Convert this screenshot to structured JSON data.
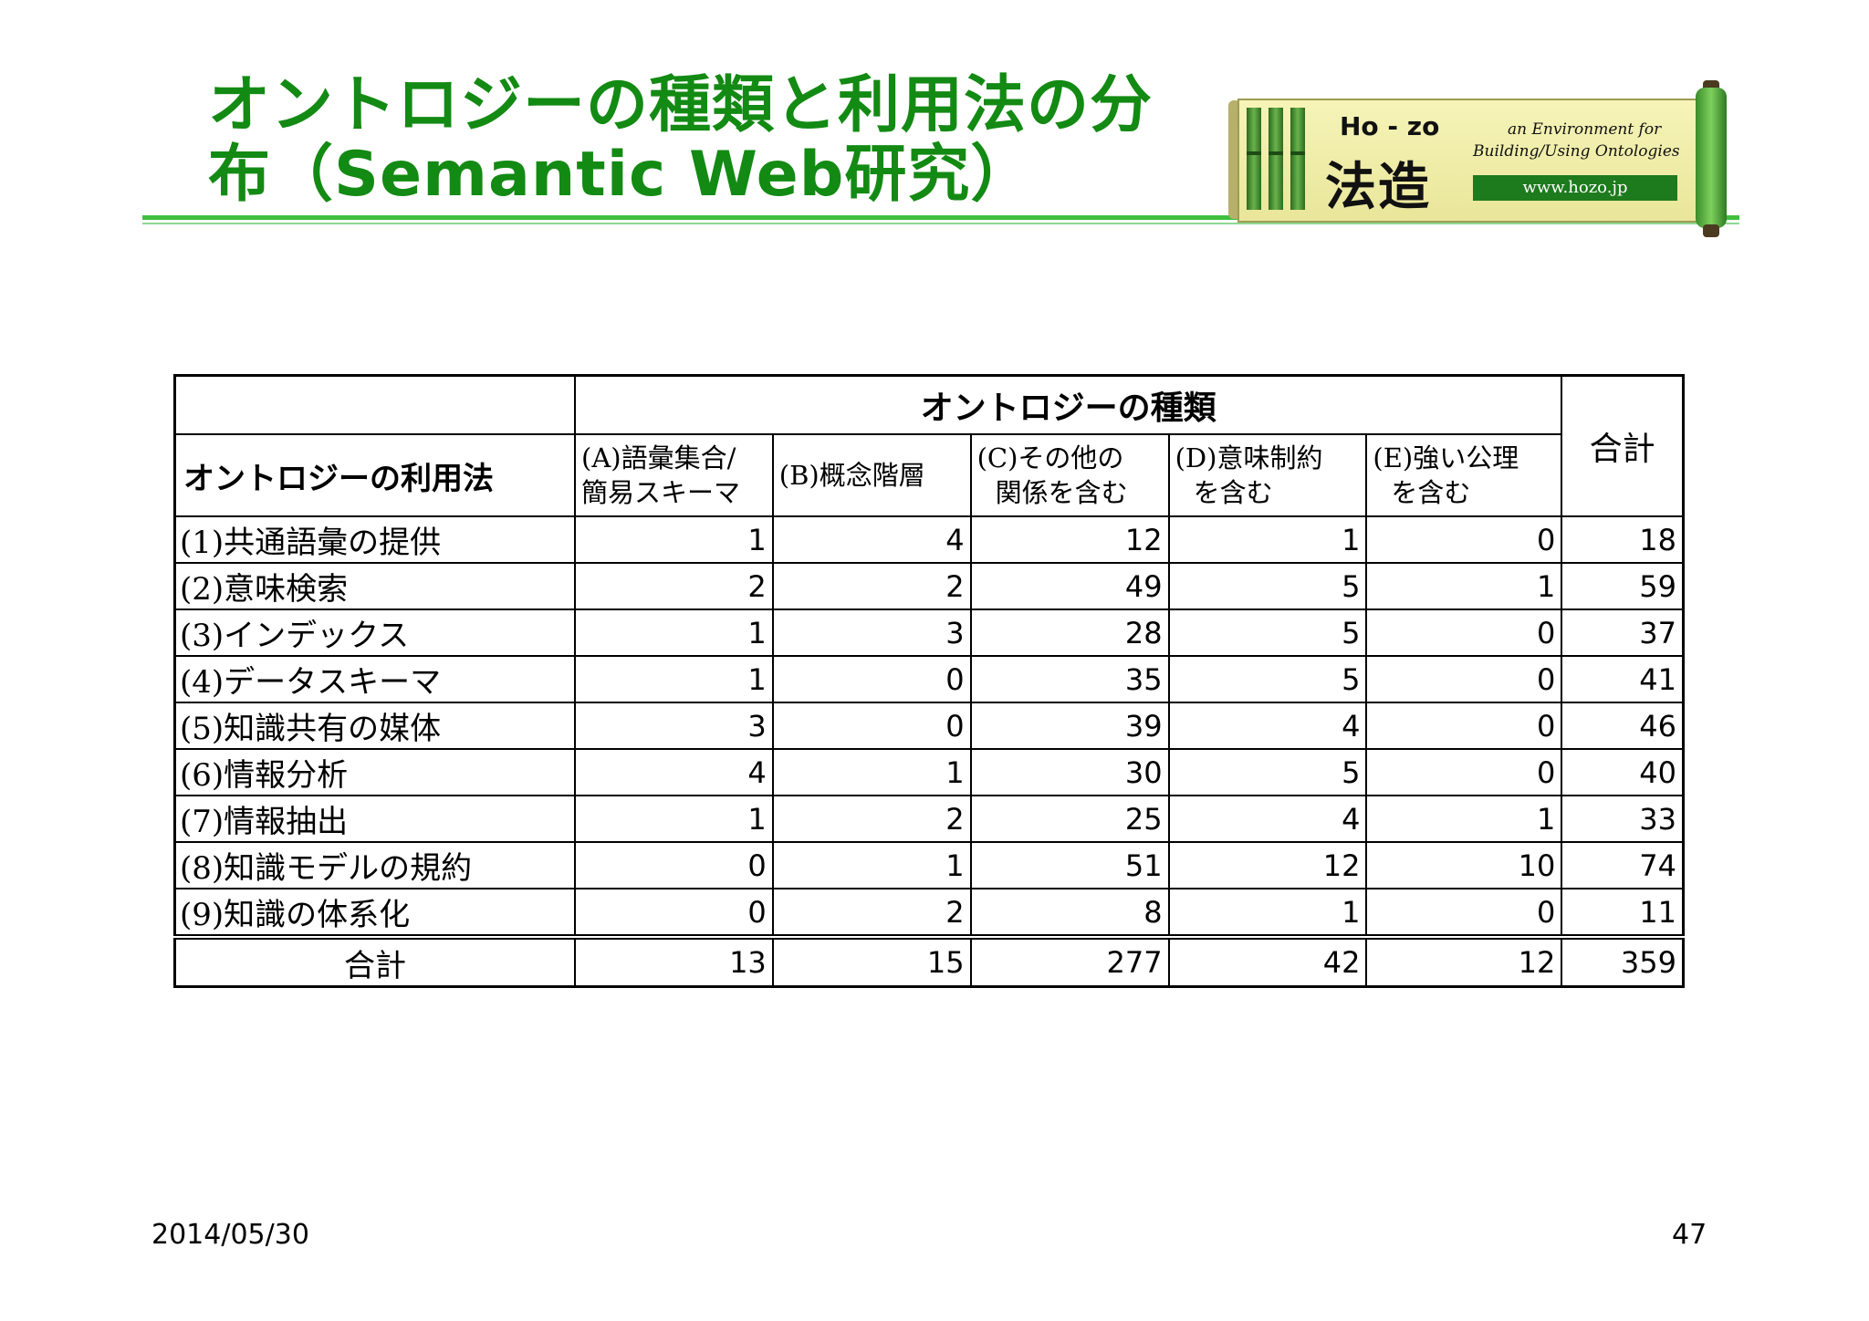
{
  "slide": {
    "title_line1": "オントロジーの種類と利用法の分",
    "title_line2": "布（Semantic Web研究）",
    "date": "2014/05/30",
    "page_number": "47"
  },
  "logo": {
    "hozo": "Ho - zo",
    "kanji": "法造",
    "tagline1": "an Environment for",
    "tagline2": "Building/Using Ontologies",
    "url": "www.hozo.jp"
  },
  "table": {
    "group_header": "オントロジーの種類",
    "usage_header": "オントロジーの利用法",
    "total_header": "合計",
    "columns": [
      {
        "line1": "(A)語彙集合/",
        "line2": "簡易スキーマ"
      },
      {
        "line1": "(B)概念階層",
        "line2": ""
      },
      {
        "line1": "(C)その他の",
        "line2": "関係を含む"
      },
      {
        "line1": "(D)意味制約",
        "line2": "を含む"
      },
      {
        "line1": "(E)強い公理",
        "line2": "を含む"
      }
    ],
    "rows": [
      {
        "label": "(1)共通語彙の提供",
        "values": [
          "1",
          "4",
          "12",
          "1",
          "0",
          "18"
        ]
      },
      {
        "label": "(2)意味検索",
        "values": [
          "2",
          "2",
          "49",
          "5",
          "1",
          "59"
        ]
      },
      {
        "label": "(3)インデックス",
        "values": [
          "1",
          "3",
          "28",
          "5",
          "0",
          "37"
        ]
      },
      {
        "label": "(4)データスキーマ",
        "values": [
          "1",
          "0",
          "35",
          "5",
          "0",
          "41"
        ]
      },
      {
        "label": "(5)知識共有の媒体",
        "values": [
          "3",
          "0",
          "39",
          "4",
          "0",
          "46"
        ]
      },
      {
        "label": "(6)情報分析",
        "values": [
          "4",
          "1",
          "30",
          "5",
          "0",
          "40"
        ]
      },
      {
        "label": "(7)情報抽出",
        "values": [
          "1",
          "2",
          "25",
          "4",
          "1",
          "33"
        ]
      },
      {
        "label": "(8)知識モデルの規約",
        "values": [
          "0",
          "1",
          "51",
          "12",
          "10",
          "74"
        ]
      },
      {
        "label": "(9)知識の体系化",
        "values": [
          "0",
          "2",
          "8",
          "1",
          "0",
          "11"
        ]
      }
    ],
    "total_row": {
      "label": "合計",
      "values": [
        "13",
        "15",
        "277",
        "42",
        "12",
        "359"
      ]
    }
  }
}
